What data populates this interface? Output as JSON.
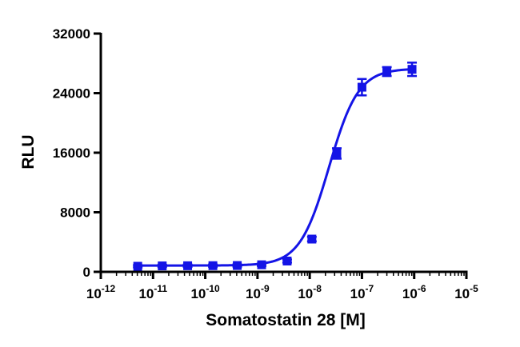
{
  "chart_data": {
    "type": "scatter",
    "title": "",
    "xlabel": "Somatostatin 28 [M]",
    "ylabel": "RLU",
    "x_scale": "log",
    "xlim": [
      1e-12,
      1e-05
    ],
    "ylim": [
      0,
      32000
    ],
    "x_ticks": [
      {
        "base": "10",
        "exp": "-12"
      },
      {
        "base": "10",
        "exp": "-11"
      },
      {
        "base": "10",
        "exp": "-10"
      },
      {
        "base": "10",
        "exp": "-9"
      },
      {
        "base": "10",
        "exp": "-8"
      },
      {
        "base": "10",
        "exp": "-7"
      },
      {
        "base": "10",
        "exp": "-6"
      },
      {
        "base": "10",
        "exp": "-5"
      }
    ],
    "y_ticks": [
      "0",
      "8000",
      "16000",
      "24000",
      "32000"
    ],
    "grid": false,
    "color": "#1414e6",
    "series": [
      {
        "points": [
          {
            "x": 5.1e-12,
            "y": 750,
            "err": 150
          },
          {
            "x": 1.5e-11,
            "y": 800,
            "err": 150
          },
          {
            "x": 4.6e-11,
            "y": 820,
            "err": 150
          },
          {
            "x": 1.4e-10,
            "y": 830,
            "err": 150
          },
          {
            "x": 4.1e-10,
            "y": 850,
            "err": 150
          },
          {
            "x": 1.2e-09,
            "y": 950,
            "err": 150
          },
          {
            "x": 3.7e-09,
            "y": 1450,
            "err": 200
          },
          {
            "x": 1.1e-08,
            "y": 4400,
            "err": 300
          },
          {
            "x": 3.3e-08,
            "y": 15900,
            "err": 700
          },
          {
            "x": 1e-07,
            "y": 24800,
            "err": 1100
          },
          {
            "x": 3e-07,
            "y": 26900,
            "err": 600
          },
          {
            "x": 9.1e-07,
            "y": 27200,
            "err": 900
          }
        ],
        "fit": {
          "bottom": 850,
          "top": 27300,
          "log_ec50": -7.63,
          "hill": 1.55
        }
      }
    ]
  }
}
